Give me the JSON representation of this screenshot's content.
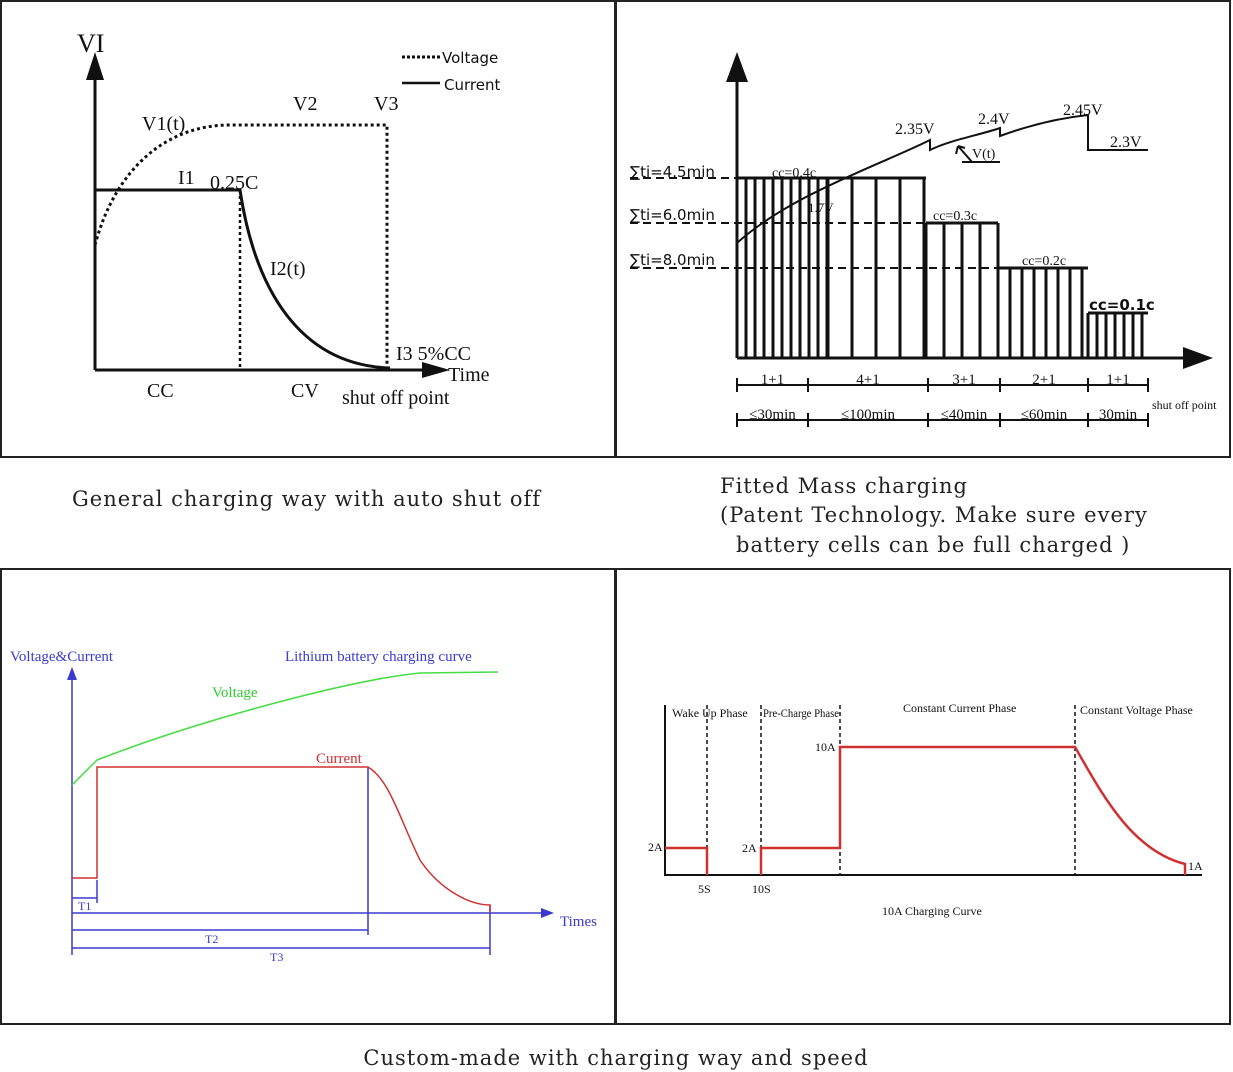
{
  "general": {
    "axis_label": "VI",
    "legend": [
      "Voltage",
      "Current"
    ],
    "v1": "V1(t)",
    "v2": "V2",
    "v3": "V3",
    "i1": "I1",
    "rate": "0.25C",
    "i2": "I2(t)",
    "i3": "I3 5%CC",
    "x_axis": "Time",
    "cc": "CC",
    "cv": "CV",
    "shut_off": "shut off point",
    "caption": "General charging way with auto shut off"
  },
  "fitted": {
    "sums": [
      "∑ti=4.5min",
      "∑ti=6.0min",
      "∑ti=8.0min"
    ],
    "currents": [
      "cc=0.4c",
      "cc=0.3c",
      "cc=0.2c",
      "cc=0.1c"
    ],
    "start_voltage": "1.7V",
    "voltages": [
      "2.35V",
      "2.4V",
      "2.45V",
      "2.3V"
    ],
    "curve": "V(t)",
    "phases": [
      "1+1",
      "4+1",
      "3+1",
      "2+1",
      "1+1"
    ],
    "times": [
      "≤30min",
      "≤100min",
      "≤40min",
      "≤60min",
      "30min"
    ],
    "shut_off": "shut off point",
    "caption": [
      "Fitted Mass charging",
      "(Patent Technology. Make sure every",
      "battery cells can be full charged )"
    ]
  },
  "lithium": {
    "axis_label": "Voltage&Current",
    "title": "Lithium battery charging curve",
    "voltage": "Voltage",
    "current": "Current",
    "x_axis": "Times",
    "t1": "T1",
    "t2": "T2",
    "t3": "T3"
  },
  "ten_amp": {
    "phases": [
      "Wake Up Phase",
      "Pre-Charge Phase",
      "Constant Current Phase",
      "Constant Voltage Phase"
    ],
    "high": "10A",
    "low_1": "2A",
    "low_2": "2A",
    "t_1": "5S",
    "t_2": "10S",
    "end": "1A",
    "title": "10A Charging Curve"
  },
  "caption": "Custom-made with charging way and speed"
}
